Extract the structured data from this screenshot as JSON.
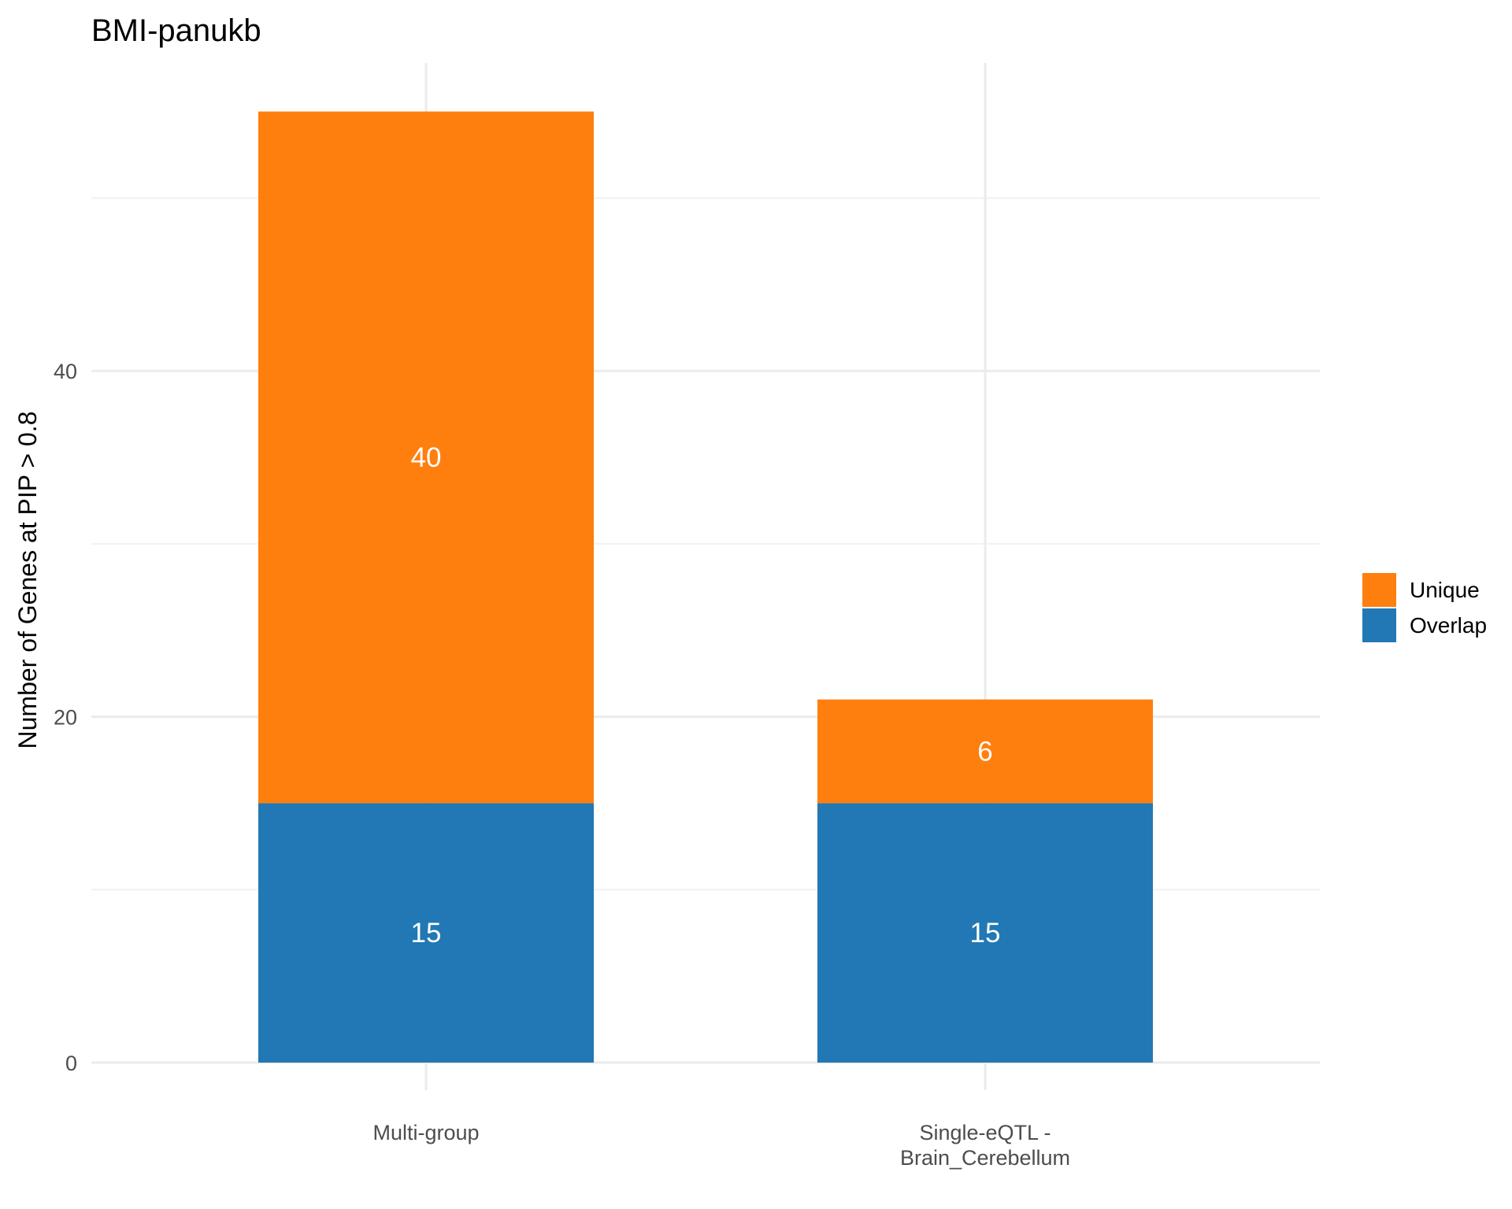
{
  "chart_data": {
    "type": "bar",
    "stacked": true,
    "title": "BMI-panukb",
    "xlabel": "",
    "ylabel": "Number of Genes at PIP > 0.8",
    "categories": [
      "Multi-group",
      "Single-eQTL - Brain_Cerebellum"
    ],
    "category_labels": [
      [
        "Multi-group"
      ],
      [
        "Single-eQTL -",
        "Brain_Cerebellum"
      ]
    ],
    "series": [
      {
        "name": "Overlap",
        "color": "#2178b4",
        "values": [
          15,
          15
        ]
      },
      {
        "name": "Unique",
        "color": "#ff7f0e",
        "values": [
          40,
          6
        ]
      }
    ],
    "ylim": [
      0,
      58
    ],
    "yticks": [
      0,
      20,
      40
    ],
    "grid": true,
    "legend_position": "right",
    "legend_order": [
      "Unique",
      "Overlap"
    ]
  }
}
